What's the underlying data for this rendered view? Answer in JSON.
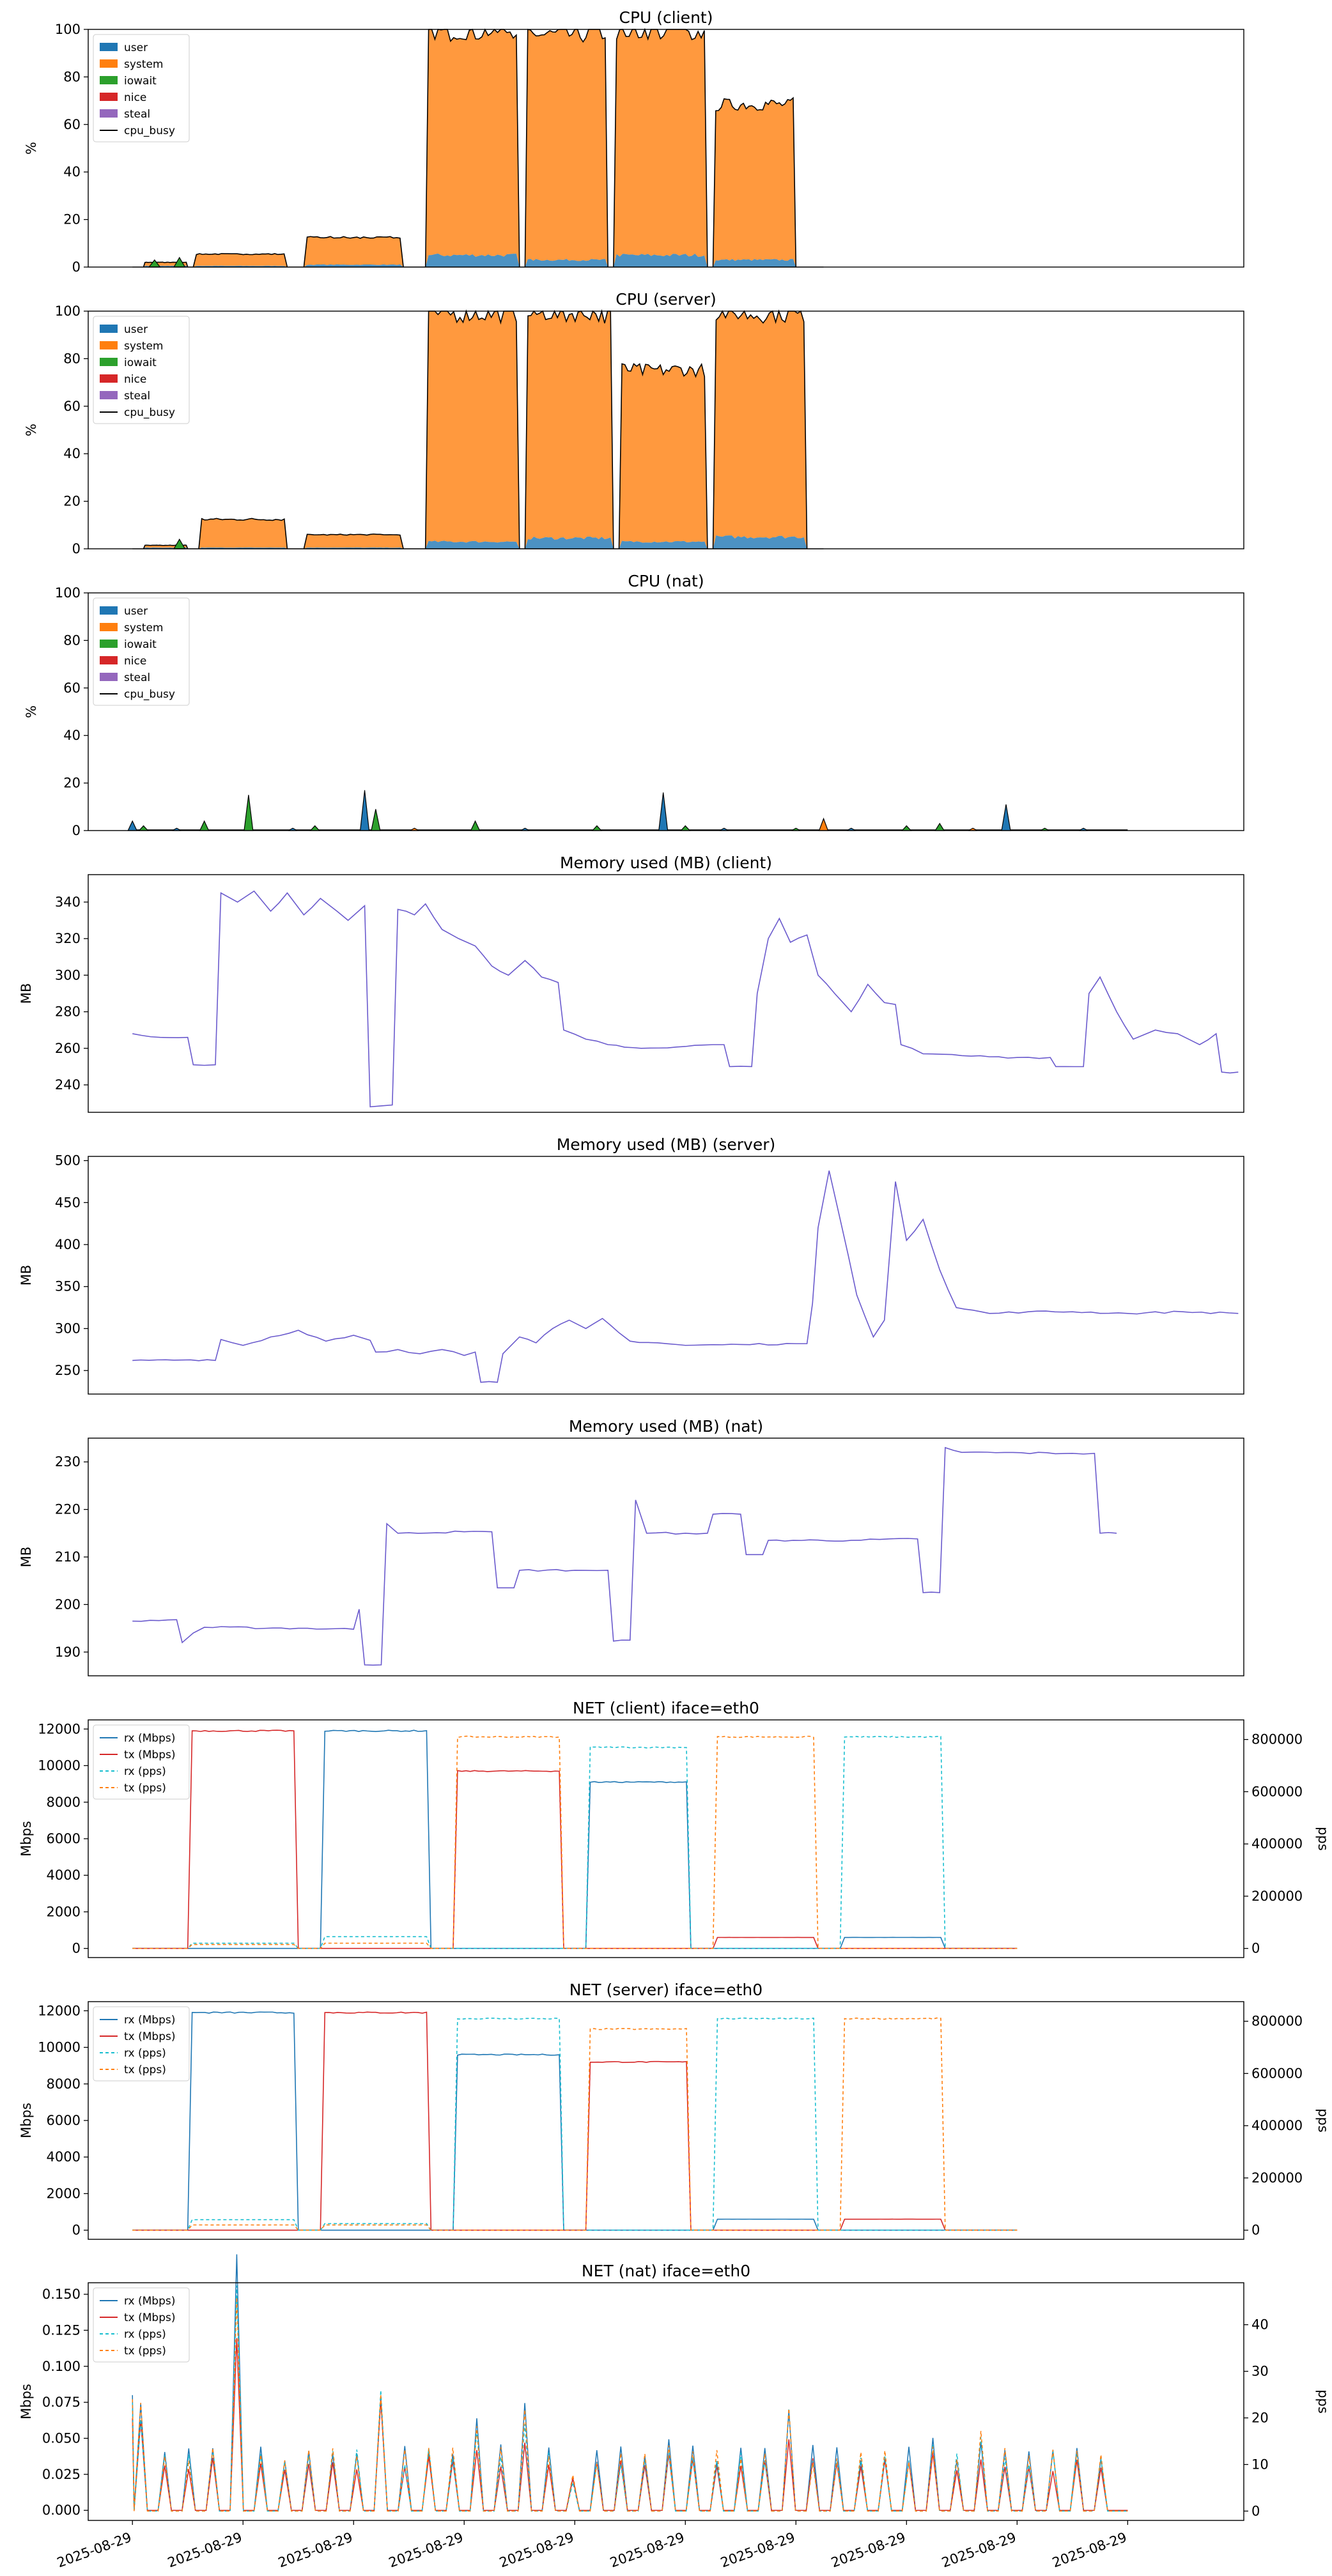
{
  "chart_data": [
    {
      "type": "area",
      "title": "CPU (client)",
      "ylabel": "%",
      "ylim": [
        0,
        100
      ],
      "yticks": [
        0,
        20,
        40,
        60,
        80,
        100
      ],
      "legend": [
        "user",
        "system",
        "iowait",
        "nice",
        "steal",
        "cpu_busy"
      ],
      "legend_position": "top-left",
      "segments": [
        {
          "start": 0.02,
          "end": 0.1,
          "user": 0.5,
          "system": 1.5,
          "iowait_spikes": [
            [
              0.04,
              3
            ],
            [
              0.085,
              4
            ]
          ]
        },
        {
          "start": 0.11,
          "end": 0.28,
          "user": 0.5,
          "system": 5.0
        },
        {
          "start": 0.31,
          "end": 0.49,
          "user": 1.0,
          "system": 11.5
        },
        {
          "start": 0.53,
          "end": 0.7,
          "user": 5.0,
          "system": 95.0
        },
        {
          "start": 0.71,
          "end": 0.86,
          "user": 3.0,
          "system": 96.0
        },
        {
          "start": 0.87,
          "end": 1.04,
          "user": 5.0,
          "system": 95.0
        },
        {
          "start": 1.05,
          "end": 1.2,
          "user": 3.0,
          "system": 66.0
        }
      ]
    },
    {
      "type": "area",
      "title": "CPU (server)",
      "ylabel": "%",
      "ylim": [
        0,
        100
      ],
      "yticks": [
        0,
        20,
        40,
        60,
        80,
        100
      ],
      "legend": [
        "user",
        "system",
        "iowait",
        "nice",
        "steal",
        "cpu_busy"
      ],
      "legend_position": "top-left",
      "segments": [
        {
          "start": 0.02,
          "end": 0.1,
          "user": 0.5,
          "system": 1.0,
          "iowait_spikes": [
            [
              0.085,
              4
            ]
          ]
        },
        {
          "start": 0.12,
          "end": 0.28,
          "user": 0.5,
          "system": 12.0
        },
        {
          "start": 0.31,
          "end": 0.49,
          "user": 0.5,
          "system": 5.5
        },
        {
          "start": 0.53,
          "end": 0.7,
          "user": 3.0,
          "system": 97.0
        },
        {
          "start": 0.71,
          "end": 0.87,
          "user": 4.5,
          "system": 95.5
        },
        {
          "start": 0.88,
          "end": 1.04,
          "user": 3.0,
          "system": 73.0
        },
        {
          "start": 1.05,
          "end": 1.22,
          "user": 5.0,
          "system": 95.0
        }
      ]
    },
    {
      "type": "area",
      "title": "CPU (nat)",
      "ylabel": "%",
      "ylim": [
        0,
        100
      ],
      "yticks": [
        0,
        20,
        40,
        60,
        80,
        100
      ],
      "legend": [
        "user",
        "system",
        "iowait",
        "nice",
        "steal",
        "cpu_busy"
      ],
      "legend_position": "top-left",
      "spikes": [
        [
          0.0,
          4,
          "user"
        ],
        [
          0.02,
          2,
          "iowait"
        ],
        [
          0.08,
          1,
          "user"
        ],
        [
          0.13,
          4,
          "iowait"
        ],
        [
          0.21,
          15,
          "iowait"
        ],
        [
          0.29,
          1,
          "user"
        ],
        [
          0.33,
          2,
          "iowait"
        ],
        [
          0.42,
          17,
          "user"
        ],
        [
          0.44,
          9,
          "iowait"
        ],
        [
          0.51,
          1,
          "system"
        ],
        [
          0.62,
          4,
          "iowait"
        ],
        [
          0.71,
          1,
          "user"
        ],
        [
          0.84,
          2,
          "iowait"
        ],
        [
          0.96,
          16,
          "user"
        ],
        [
          1.0,
          2,
          "iowait"
        ],
        [
          1.07,
          1,
          "user"
        ],
        [
          1.2,
          1,
          "iowait"
        ],
        [
          1.25,
          5,
          "system"
        ],
        [
          1.3,
          1,
          "user"
        ],
        [
          1.4,
          2,
          "iowait"
        ],
        [
          1.46,
          3,
          "iowait"
        ],
        [
          1.52,
          1,
          "system"
        ],
        [
          1.58,
          11,
          "user"
        ],
        [
          1.65,
          1,
          "iowait"
        ],
        [
          1.72,
          1,
          "user"
        ]
      ]
    },
    {
      "type": "line",
      "title": "Memory used (MB) (client)",
      "ylabel": "MB",
      "ylim": [
        225,
        355
      ],
      "yticks": [
        240,
        260,
        280,
        300,
        320,
        340
      ],
      "color": "#6a5acd",
      "points": [
        [
          0.0,
          268
        ],
        [
          0.05,
          266
        ],
        [
          0.1,
          266
        ],
        [
          0.11,
          251
        ],
        [
          0.15,
          251
        ],
        [
          0.16,
          345
        ],
        [
          0.19,
          340
        ],
        [
          0.22,
          346
        ],
        [
          0.25,
          335
        ],
        [
          0.28,
          345
        ],
        [
          0.31,
          333
        ],
        [
          0.34,
          342
        ],
        [
          0.37,
          335
        ],
        [
          0.39,
          330
        ],
        [
          0.42,
          338
        ],
        [
          0.43,
          228
        ],
        [
          0.47,
          229
        ],
        [
          0.48,
          336
        ],
        [
          0.51,
          333
        ],
        [
          0.53,
          339
        ],
        [
          0.56,
          325
        ],
        [
          0.59,
          320
        ],
        [
          0.62,
          316
        ],
        [
          0.65,
          305
        ],
        [
          0.68,
          300
        ],
        [
          0.71,
          308
        ],
        [
          0.74,
          299
        ],
        [
          0.77,
          296
        ],
        [
          0.78,
          270
        ],
        [
          0.82,
          265
        ],
        [
          0.86,
          262
        ],
        [
          0.92,
          260
        ],
        [
          1.0,
          261
        ],
        [
          1.05,
          262
        ],
        [
          1.07,
          262
        ],
        [
          1.08,
          250
        ],
        [
          1.12,
          250
        ],
        [
          1.13,
          290
        ],
        [
          1.15,
          320
        ],
        [
          1.17,
          331
        ],
        [
          1.19,
          318
        ],
        [
          1.22,
          322
        ],
        [
          1.24,
          300
        ],
        [
          1.27,
          290
        ],
        [
          1.3,
          280
        ],
        [
          1.33,
          295
        ],
        [
          1.36,
          285
        ],
        [
          1.38,
          284
        ],
        [
          1.39,
          262
        ],
        [
          1.43,
          257
        ],
        [
          1.5,
          256
        ],
        [
          1.6,
          255
        ],
        [
          1.66,
          255
        ],
        [
          1.67,
          250
        ],
        [
          1.72,
          250
        ],
        [
          1.73,
          290
        ],
        [
          1.75,
          299
        ],
        [
          1.78,
          280
        ],
        [
          1.81,
          265
        ],
        [
          1.85,
          270
        ],
        [
          1.89,
          268
        ],
        [
          1.93,
          262
        ],
        [
          1.96,
          268
        ],
        [
          1.97,
          247
        ],
        [
          2.0,
          247
        ]
      ]
    },
    {
      "type": "line",
      "title": "Memory used (MB) (server)",
      "ylabel": "MB",
      "ylim": [
        222,
        505
      ],
      "yticks": [
        250,
        300,
        350,
        400,
        450,
        500
      ],
      "color": "#6a5acd",
      "points": [
        [
          0.0,
          262
        ],
        [
          0.15,
          262
        ],
        [
          0.16,
          287
        ],
        [
          0.2,
          280
        ],
        [
          0.25,
          290
        ],
        [
          0.3,
          298
        ],
        [
          0.35,
          285
        ],
        [
          0.4,
          292
        ],
        [
          0.43,
          286
        ],
        [
          0.44,
          272
        ],
        [
          0.48,
          275
        ],
        [
          0.52,
          270
        ],
        [
          0.56,
          275
        ],
        [
          0.6,
          268
        ],
        [
          0.62,
          272
        ],
        [
          0.63,
          236
        ],
        [
          0.66,
          236
        ],
        [
          0.67,
          270
        ],
        [
          0.7,
          290
        ],
        [
          0.73,
          283
        ],
        [
          0.76,
          300
        ],
        [
          0.79,
          310
        ],
        [
          0.82,
          300
        ],
        [
          0.85,
          312
        ],
        [
          0.88,
          295
        ],
        [
          0.9,
          285
        ],
        [
          0.95,
          283
        ],
        [
          1.0,
          280
        ],
        [
          1.1,
          281
        ],
        [
          1.2,
          282
        ],
        [
          1.22,
          282
        ],
        [
          1.23,
          330
        ],
        [
          1.24,
          420
        ],
        [
          1.26,
          488
        ],
        [
          1.28,
          430
        ],
        [
          1.31,
          340
        ],
        [
          1.34,
          290
        ],
        [
          1.36,
          310
        ],
        [
          1.38,
          475
        ],
        [
          1.4,
          405
        ],
        [
          1.43,
          430
        ],
        [
          1.46,
          370
        ],
        [
          1.49,
          325
        ],
        [
          1.55,
          318
        ],
        [
          1.62,
          320
        ],
        [
          1.7,
          320
        ],
        [
          1.8,
          318
        ],
        [
          1.9,
          320
        ],
        [
          2.0,
          318
        ]
      ]
    },
    {
      "type": "line",
      "title": "Memory used (MB) (nat)",
      "ylabel": "MB",
      "ylim": [
        185,
        235
      ],
      "yticks": [
        190,
        200,
        210,
        220,
        230
      ],
      "color": "#6a5acd",
      "points": [
        [
          0.0,
          196.5
        ],
        [
          0.08,
          196.8
        ],
        [
          0.09,
          192
        ],
        [
          0.11,
          194
        ],
        [
          0.13,
          195.2
        ],
        [
          0.3,
          195
        ],
        [
          0.4,
          194.8
        ],
        [
          0.41,
          199
        ],
        [
          0.42,
          187.3
        ],
        [
          0.45,
          187.3
        ],
        [
          0.46,
          217
        ],
        [
          0.48,
          215
        ],
        [
          0.5,
          215.1
        ],
        [
          0.6,
          215.3
        ],
        [
          0.65,
          215.3
        ],
        [
          0.66,
          203.5
        ],
        [
          0.69,
          203.5
        ],
        [
          0.7,
          207.2
        ],
        [
          0.8,
          207.2
        ],
        [
          0.86,
          207.2
        ],
        [
          0.87,
          192.3
        ],
        [
          0.9,
          192.5
        ],
        [
          0.91,
          222
        ],
        [
          0.93,
          215
        ],
        [
          1.0,
          215
        ],
        [
          1.04,
          215
        ],
        [
          1.05,
          219
        ],
        [
          1.1,
          219
        ],
        [
          1.11,
          210.5
        ],
        [
          1.14,
          210.5
        ],
        [
          1.15,
          213.5
        ],
        [
          1.3,
          213.5
        ],
        [
          1.42,
          213.8
        ],
        [
          1.43,
          202.5
        ],
        [
          1.46,
          202.5
        ],
        [
          1.47,
          233
        ],
        [
          1.5,
          232
        ],
        [
          1.7,
          231.8
        ],
        [
          1.74,
          231.8
        ],
        [
          1.75,
          215
        ],
        [
          1.78,
          215
        ]
      ]
    },
    {
      "type": "line",
      "title": "NET (client) iface=eth0",
      "ylabel": "Mbps",
      "ylabel_right": "pps",
      "ylim": [
        -500,
        12500
      ],
      "yticks": [
        0,
        2000,
        4000,
        6000,
        8000,
        10000,
        12000
      ],
      "ylim_right": [
        -35000,
        875000
      ],
      "yticks_right": [
        0,
        200000,
        400000,
        600000,
        800000
      ],
      "legend": [
        "rx (Mbps)",
        "tx (Mbps)",
        "rx (pps)",
        "tx (pps)"
      ],
      "legend_position": "top-left",
      "segments": [
        {
          "start": 0.1,
          "end": 0.3,
          "rx_mbps": 0,
          "tx_mbps": 11900,
          "rx_pps": 20000,
          "tx_pps": 15000
        },
        {
          "start": 0.34,
          "end": 0.54,
          "rx_mbps": 11900,
          "tx_mbps": 0,
          "rx_pps": 45000,
          "tx_pps": 20000
        },
        {
          "start": 0.58,
          "end": 0.78,
          "rx_mbps": 0,
          "tx_mbps": 9700,
          "rx_pps": 0,
          "tx_pps": 810000
        },
        {
          "start": 0.82,
          "end": 1.01,
          "rx_mbps": 9100,
          "tx_mbps": 0,
          "rx_pps": 770000,
          "tx_pps": 0
        },
        {
          "start": 1.05,
          "end": 1.24,
          "rx_mbps": 0,
          "tx_mbps": 600,
          "rx_pps": 0,
          "tx_pps": 810000
        },
        {
          "start": 1.28,
          "end": 1.47,
          "rx_mbps": 600,
          "tx_mbps": 0,
          "rx_pps": 810000,
          "tx_pps": 0
        }
      ]
    },
    {
      "type": "line",
      "title": "NET (server) iface=eth0",
      "ylabel": "Mbps",
      "ylabel_right": "pps",
      "ylim": [
        -500,
        12500
      ],
      "yticks": [
        0,
        2000,
        4000,
        6000,
        8000,
        10000,
        12000
      ],
      "ylim_right": [
        -35000,
        875000
      ],
      "yticks_right": [
        0,
        200000,
        400000,
        600000,
        800000
      ],
      "legend": [
        "rx (Mbps)",
        "tx (Mbps)",
        "rx (pps)",
        "tx (pps)"
      ],
      "legend_position": "top-left",
      "segments": [
        {
          "start": 0.1,
          "end": 0.3,
          "rx_mbps": 11900,
          "tx_mbps": 0,
          "rx_pps": 40000,
          "tx_pps": 20000
        },
        {
          "start": 0.34,
          "end": 0.54,
          "rx_mbps": 0,
          "tx_mbps": 11900,
          "rx_pps": 25000,
          "tx_pps": 20000
        },
        {
          "start": 0.58,
          "end": 0.78,
          "rx_mbps": 9600,
          "tx_mbps": 0,
          "rx_pps": 810000,
          "tx_pps": 0
        },
        {
          "start": 0.82,
          "end": 1.01,
          "rx_mbps": 0,
          "tx_mbps": 9200,
          "rx_pps": 0,
          "tx_pps": 770000
        },
        {
          "start": 1.05,
          "end": 1.24,
          "rx_mbps": 600,
          "tx_mbps": 0,
          "rx_pps": 810000,
          "tx_pps": 0
        },
        {
          "start": 1.28,
          "end": 1.47,
          "rx_mbps": 0,
          "tx_mbps": 600,
          "rx_pps": 0,
          "tx_pps": 810000
        }
      ]
    },
    {
      "type": "line",
      "title": "NET (nat) iface=eth0",
      "ylabel": "Mbps",
      "ylabel_right": "pps",
      "ylim": [
        -0.007,
        0.158
      ],
      "yticks": [
        0.0,
        0.025,
        0.05,
        0.075,
        0.1,
        0.125,
        0.15
      ],
      "ytick_labels": [
        "0.000",
        "0.025",
        "0.050",
        "0.075",
        "0.100",
        "0.125",
        "0.150"
      ],
      "ylim_right": [
        -2,
        49
      ],
      "yticks_right": [
        0,
        10,
        20,
        30,
        40
      ],
      "legend": [
        "rx (Mbps)",
        "tx (Mbps)",
        "rx (pps)",
        "tx (pps)"
      ],
      "legend_position": "top-left",
      "spike_heights": [
        0.08,
        0.04,
        0.04,
        0.04,
        0.155,
        0.04,
        0.04,
        0.04,
        0.04,
        0.04,
        0.09,
        0.04,
        0.045,
        0.04,
        0.06,
        0.04,
        0.065,
        0.04,
        0.025,
        0.04,
        0.04,
        0.04,
        0.045,
        0.04,
        0.04,
        0.04,
        0.04,
        0.07,
        0.04,
        0.04,
        0.04,
        0.04,
        0.04,
        0.045,
        0.04,
        0.05,
        0.04,
        0.04,
        0.04,
        0.04,
        0.04
      ],
      "x_tick_labels": [
        "2025-08-29",
        "2025-08-29",
        "2025-08-29",
        "2025-08-29",
        "2025-08-29",
        "2025-08-29",
        "2025-08-29",
        "2025-08-29",
        "2025-08-29",
        "2025-08-29"
      ]
    }
  ]
}
